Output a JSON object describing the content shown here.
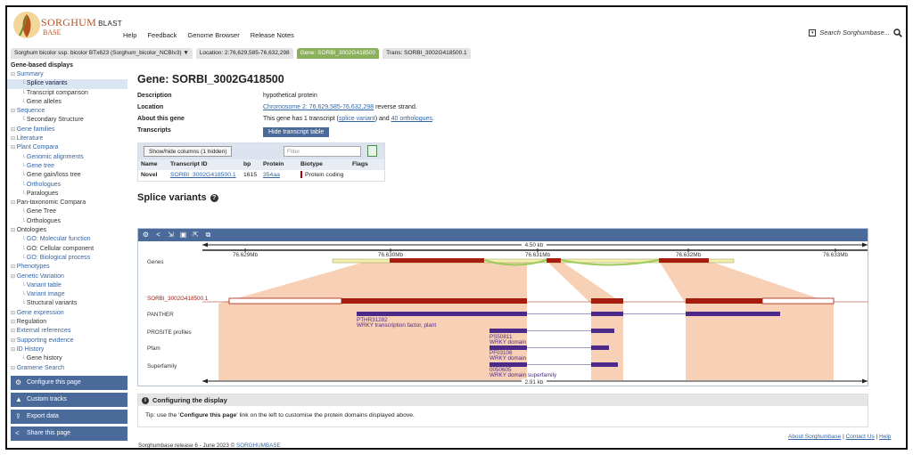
{
  "brand": {
    "name_line1": "SORGHUM",
    "blast": "BLAST",
    "name_line2": "BASE"
  },
  "nav": [
    "Help",
    "Feedback",
    "Genome Browser",
    "Release Notes"
  ],
  "search": {
    "placeholder": "Search Sorghumbase..."
  },
  "tabs": {
    "species": "Sorghum bicolor ssp. bicolor BTx623 (Sorghum_bicolor_NCBIv3)",
    "species_arrow": "▼",
    "location": "Location: 2:76,629,585-76,632,298",
    "gene": "Gene: SORBI_3002G418500",
    "transcript": "Trans: SORBI_3002G418500.1"
  },
  "sidebar": {
    "heading": "Gene-based displays",
    "items": [
      {
        "label": "Summary",
        "level": 0
      },
      {
        "label": "Splice variants",
        "level": 1,
        "selected": true
      },
      {
        "label": "Transcript comparison",
        "level": 1
      },
      {
        "label": "Gene alleles",
        "level": 1
      },
      {
        "label": "Sequence",
        "level": 0
      },
      {
        "label": "Secondary Structure",
        "level": 1
      },
      {
        "label": "Gene families",
        "level": 0
      },
      {
        "label": "Literature",
        "level": 0
      },
      {
        "label": "Plant Compara",
        "level": 0
      },
      {
        "label": "Genomic alignments",
        "level": 1,
        "link": true
      },
      {
        "label": "Gene tree",
        "level": 1,
        "link": true
      },
      {
        "label": "Gene gain/loss tree",
        "level": 1
      },
      {
        "label": "Orthologues",
        "level": 1,
        "link": true
      },
      {
        "label": "Paralogues",
        "level": 1
      },
      {
        "label": "Pan-taxonomic Compara",
        "level": 0,
        "plain": true
      },
      {
        "label": "Gene Tree",
        "level": 1
      },
      {
        "label": "Orthologues",
        "level": 1
      },
      {
        "label": "Ontologies",
        "level": 0,
        "plain": true
      },
      {
        "label": "GO: Molecular function",
        "level": 1,
        "link": true
      },
      {
        "label": "GO: Cellular component",
        "level": 1
      },
      {
        "label": "GO: Biological process",
        "level": 1,
        "link": true
      },
      {
        "label": "Phenotypes",
        "level": 0
      },
      {
        "label": "Genetic Variation",
        "level": 0
      },
      {
        "label": "Variant table",
        "level": 1,
        "link": true
      },
      {
        "label": "Variant image",
        "level": 1,
        "link": true
      },
      {
        "label": "Structural variants",
        "level": 1
      },
      {
        "label": "Gene expression",
        "level": 0
      },
      {
        "label": "Regulation",
        "level": 0,
        "plain": true
      },
      {
        "label": "External references",
        "level": 0
      },
      {
        "label": "Supporting evidence",
        "level": 0
      },
      {
        "label": "ID History",
        "level": 0
      },
      {
        "label": "Gene history",
        "level": 1
      },
      {
        "label": "Gramene Search",
        "level": 0
      }
    ],
    "buttons": [
      {
        "label": "Configure this page",
        "icon": "gear-icon",
        "glyph": "⚙"
      },
      {
        "label": "Custom tracks",
        "icon": "upload-icon",
        "glyph": "▲"
      },
      {
        "label": "Export data",
        "icon": "export-icon",
        "glyph": "⇪"
      },
      {
        "label": "Share this page",
        "icon": "share-icon",
        "glyph": "<"
      }
    ]
  },
  "gene": {
    "title": "Gene: SORBI_3002G418500",
    "description_label": "Description",
    "description": "hypothetical protein",
    "location_label": "Location",
    "location_link": "Chromosome 2: 76,629,585-76,632,298",
    "location_suffix": "reverse strand.",
    "about_label": "About this gene",
    "about_prefix": "This gene has 1 transcript (",
    "about_link1": "splice variant",
    "about_mid": ") and",
    "about_link2": "40 orthologues",
    "about_suffix": ".",
    "transcripts_label": "Transcripts",
    "hide_button": "Hide transcript table"
  },
  "transcript_table": {
    "show_hide": "Show/hide columns (1 hidden)",
    "filter_placeholder": "Filter",
    "headers": [
      "Name",
      "Transcript ID",
      "bp",
      "Protein",
      "Biotype",
      "Flags"
    ],
    "rows": [
      {
        "name": "Novel",
        "id": "SORBI_3002G418500.1",
        "bp": "1615",
        "protein": "354aa",
        "biotype": "Protein coding",
        "flags": ""
      }
    ]
  },
  "splice": {
    "title": "Splice variants",
    "scale_top": "4.50 kb",
    "scale_bottom": "2.91 kb",
    "ticks": [
      "76.629Mb",
      "76.630Mb",
      "76.631Mb",
      "76.632Mb",
      "76.633Mb"
    ],
    "tracks": {
      "genes": "Genes",
      "transcript": "SORBI_3002G418500.1",
      "panther": "PANTHER",
      "prosite": "PROSITE profiles",
      "pfam": "Pfam",
      "superfamily": "Superfamily"
    },
    "features": {
      "panther_id": "PTHR31282",
      "panther_desc": "WRKY transcription factor, plant",
      "prosite_id": "PS50811",
      "prosite_desc": "WRKY domain",
      "pfam_id": "PF03106",
      "pfam_desc": "WRKY domain",
      "sf_id": "0050605",
      "sf_desc": "WRKY domain superfamily"
    }
  },
  "config": {
    "title": "Configuring the display",
    "tip_prefix": "Tip: use the '",
    "tip_bold": "Configure this page",
    "tip_suffix": "' link on the left to customise the protein domains displayed above."
  },
  "footer": {
    "release": "Sorghumbase release 6 - June 2023 ©",
    "release_link": "SORGHUMBASE",
    "about": "About Sorghumbase",
    "contact": "Contact Us",
    "help": "Help"
  },
  "colors": {
    "exon": "#a61c0f",
    "domain": "#4b2a8a",
    "gene_green": "#9ccc5a",
    "intron_shade": "#f7c8a8",
    "accent": "#4a6a9a"
  }
}
